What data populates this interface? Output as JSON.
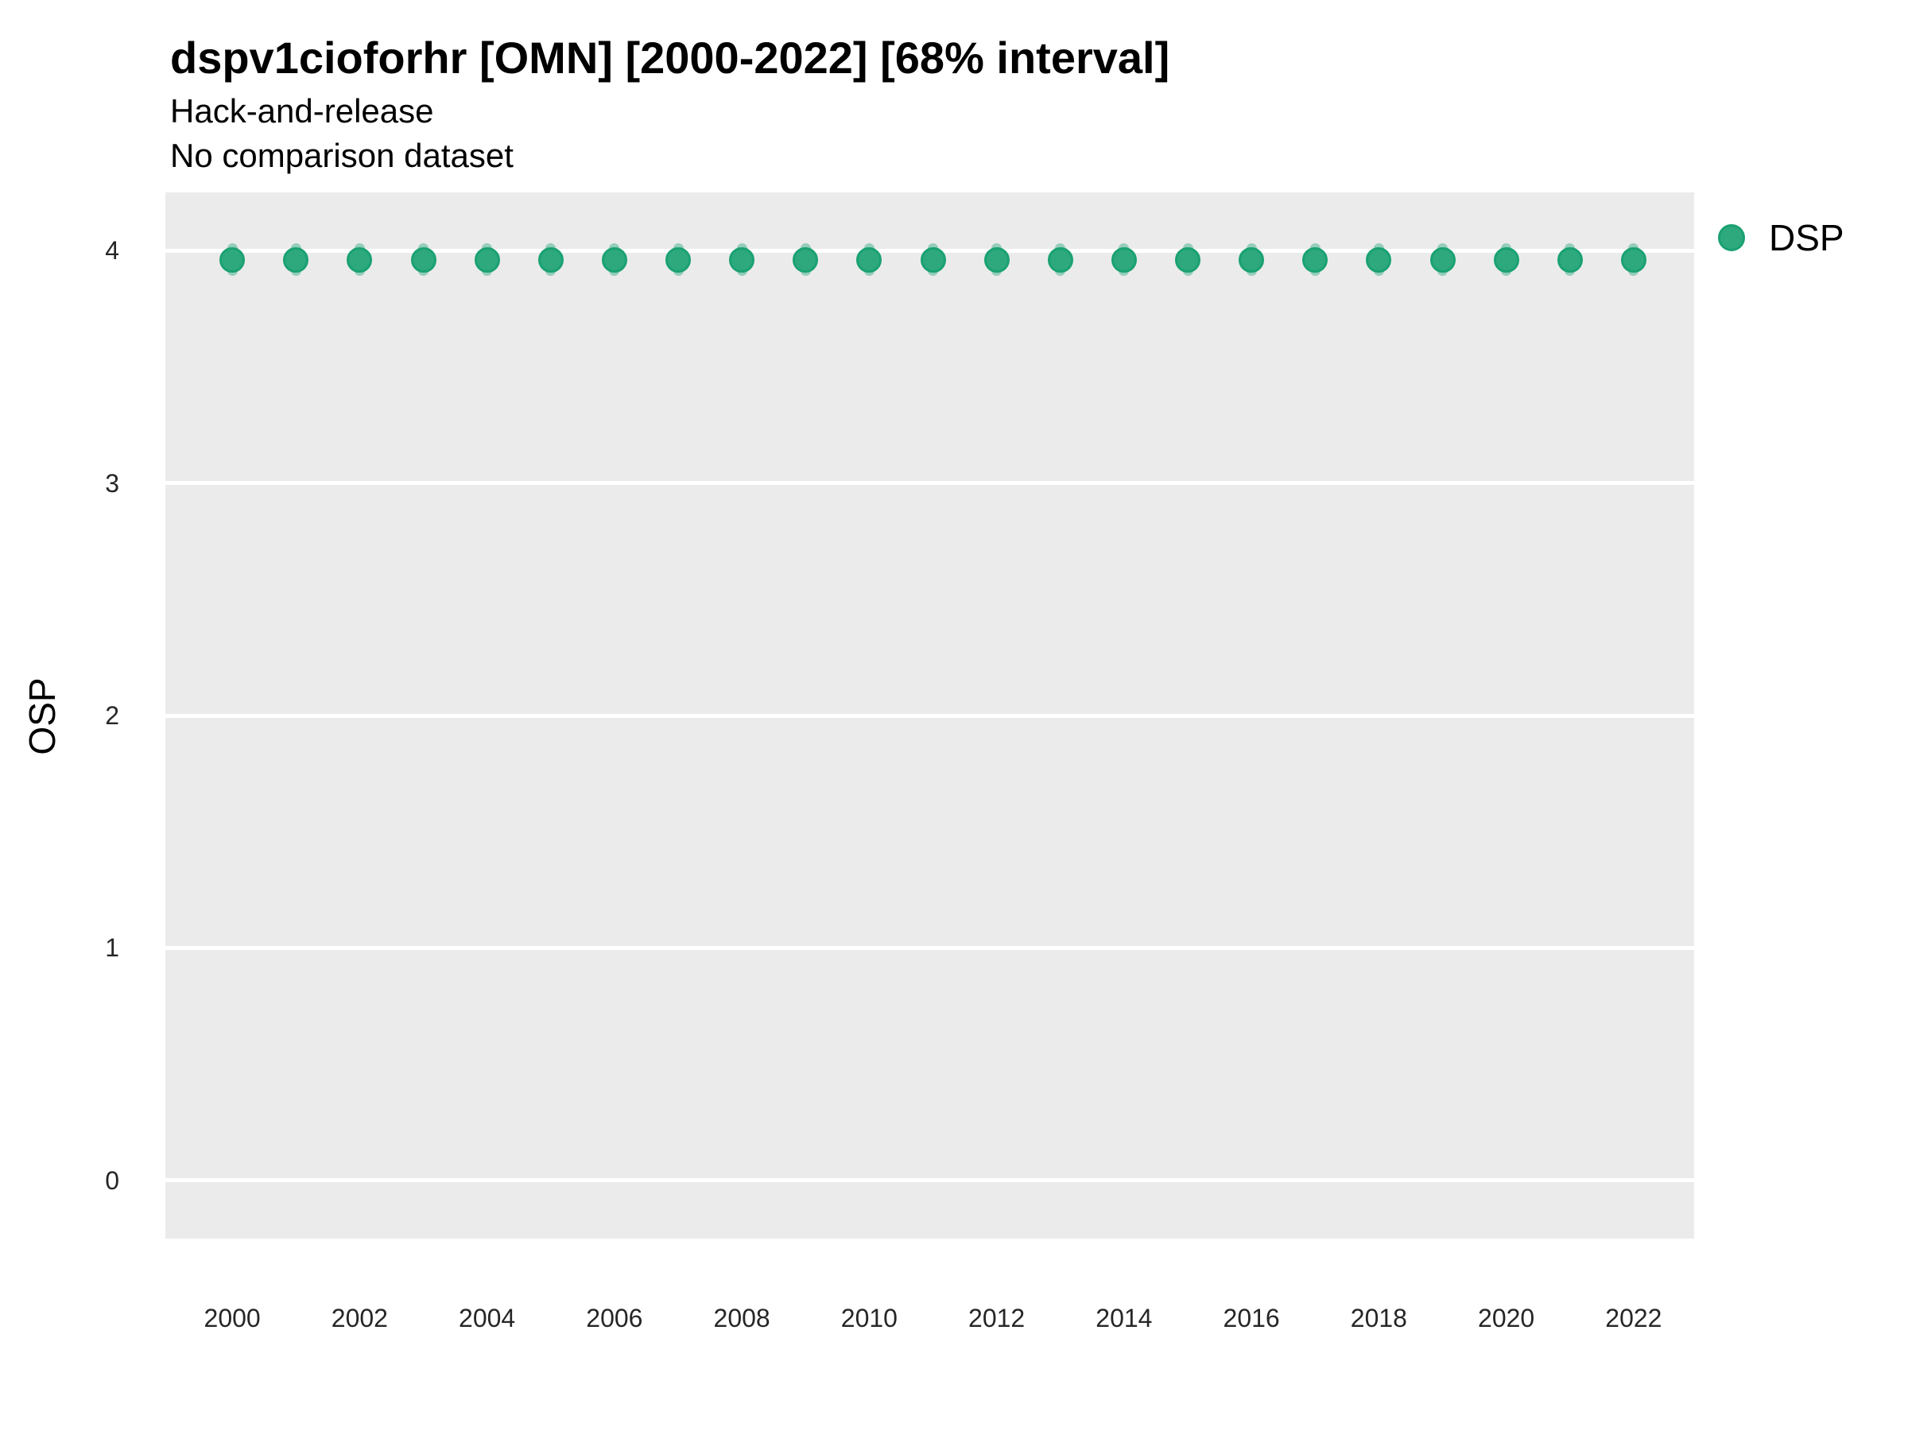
{
  "page": {
    "background": "#ffffff"
  },
  "header": {
    "title": "dspv1cioforhr [OMN] [2000-2022] [68% interval]",
    "subtitle1": "Hack-and-release",
    "subtitle2": "No comparison dataset"
  },
  "legend": {
    "items": [
      {
        "label": "DSP",
        "color": "#2DA97D"
      }
    ]
  },
  "chart_data": {
    "type": "scatter",
    "title": "dspv1cioforhr [OMN] [2000-2022] [68% interval]",
    "subtitle": [
      "Hack-and-release",
      "No comparison dataset"
    ],
    "xlabel": "",
    "ylabel": "OSP",
    "x": [
      2000,
      2001,
      2002,
      2003,
      2004,
      2005,
      2006,
      2007,
      2008,
      2009,
      2010,
      2011,
      2012,
      2013,
      2014,
      2015,
      2016,
      2017,
      2018,
      2019,
      2020,
      2021,
      2022
    ],
    "series": [
      {
        "name": "DSP",
        "values": [
          3.96,
          3.96,
          3.96,
          3.96,
          3.96,
          3.96,
          3.96,
          3.96,
          3.96,
          3.96,
          3.96,
          3.96,
          3.96,
          3.96,
          3.96,
          3.96,
          3.96,
          3.96,
          3.96,
          3.96,
          3.96,
          3.96,
          3.96
        ],
        "interval_low": [
          3.89,
          3.89,
          3.89,
          3.89,
          3.89,
          3.89,
          3.89,
          3.89,
          3.89,
          3.89,
          3.89,
          3.89,
          3.89,
          3.89,
          3.89,
          3.89,
          3.89,
          3.89,
          3.89,
          3.89,
          3.89,
          3.89,
          3.89
        ],
        "interval_high": [
          4.03,
          4.03,
          4.03,
          4.03,
          4.03,
          4.03,
          4.03,
          4.03,
          4.03,
          4.03,
          4.03,
          4.03,
          4.03,
          4.03,
          4.03,
          4.03,
          4.03,
          4.03,
          4.03,
          4.03,
          4.03,
          4.03,
          4.03
        ],
        "color": "#2DA97D"
      }
    ],
    "x_ticks": [
      2000,
      2002,
      2004,
      2006,
      2008,
      2010,
      2012,
      2014,
      2016,
      2018,
      2020,
      2022
    ],
    "y_ticks": [
      0,
      1,
      2,
      3,
      4
    ],
    "xlim": [
      1998.95,
      2022.95
    ],
    "ylim": [
      -0.25,
      4.25
    ],
    "interval_label": "68% interval",
    "grid": "horizontal-major-only",
    "legend_position": "right",
    "panel_background": "#EBEBEB",
    "gridline_color": "#FFFFFF",
    "point_color": "#2DA97D",
    "point_edge_color": "#1AA172",
    "interval_color": "rgba(45, 169, 125, 0.45)",
    "axis_text_color": "#262626"
  }
}
